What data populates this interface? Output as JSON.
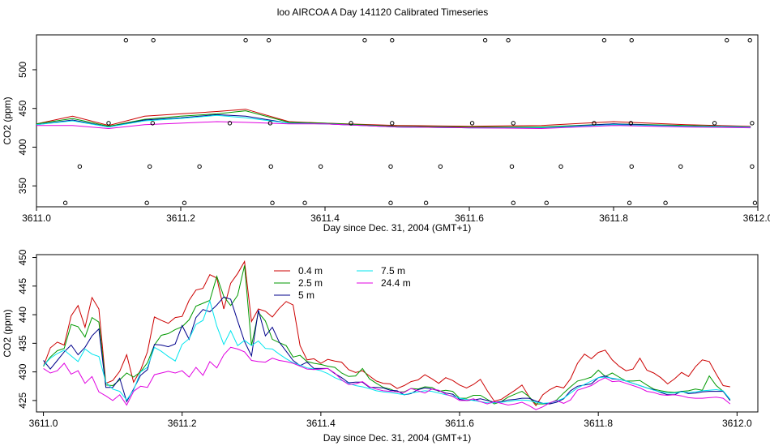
{
  "title": "loo AIRCOA A  Day 141120  Calibrated Timeseries",
  "colors": {
    "0.4 m": "#cc0000",
    "2.5 m": "#009900",
    "5 m": "#00008b",
    "7.5 m": "#00e5ee",
    "24.4 m": "#e000e0",
    "axis": "#000000",
    "background": "#ffffff"
  },
  "chart_data": [
    {
      "type": "line",
      "title": "loo AIRCOA A  Day 141120  Calibrated Timeseries",
      "xlabel": "Day since Dec. 31, 2004 (GMT+1)",
      "ylabel": "CO2 (ppm)",
      "xlim": [
        3611.0,
        3612.0
      ],
      "ylim": [
        323,
        545
      ],
      "xticks": [
        "3611.0",
        "3611.2",
        "3611.4",
        "3611.6",
        "3611.8",
        "3612.0"
      ],
      "yticks": [
        "350",
        "400",
        "450",
        "500"
      ],
      "grid": false,
      "legend": "none",
      "series": [
        {
          "key": "0.4 m",
          "x": [
            3611.0,
            3611.05,
            3611.1,
            3611.15,
            3611.2,
            3611.25,
            3611.29,
            3611.35,
            3611.4,
            3611.5,
            3611.6,
            3611.7,
            3611.8,
            3611.9,
            3611.99
          ],
          "values": [
            430,
            440,
            428,
            440,
            443,
            446,
            449,
            433,
            431,
            428,
            427,
            428,
            433,
            429,
            427
          ]
        },
        {
          "key": "2.5 m",
          "x": [
            3611.0,
            3611.05,
            3611.1,
            3611.15,
            3611.2,
            3611.25,
            3611.29,
            3611.35,
            3611.4,
            3611.5,
            3611.6,
            3611.7,
            3611.8,
            3611.9,
            3611.99
          ],
          "values": [
            430,
            437,
            427,
            436,
            440,
            443,
            447,
            432,
            431,
            427,
            426,
            426,
            430,
            428,
            426
          ]
        },
        {
          "key": "5 m",
          "x": [
            3611.0,
            3611.05,
            3611.1,
            3611.15,
            3611.2,
            3611.25,
            3611.29,
            3611.35,
            3611.4,
            3611.5,
            3611.6,
            3611.7,
            3611.8,
            3611.9,
            3611.99
          ],
          "values": [
            429,
            435,
            426,
            435,
            438,
            442,
            440,
            431,
            430,
            426,
            425,
            425,
            430,
            427,
            426
          ]
        },
        {
          "key": "7.5 m",
          "x": [
            3611.0,
            3611.05,
            3611.1,
            3611.15,
            3611.2,
            3611.25,
            3611.29,
            3611.35,
            3611.4,
            3611.5,
            3611.6,
            3611.7,
            3611.8,
            3611.9,
            3611.99
          ],
          "values": [
            429,
            434,
            426,
            434,
            437,
            441,
            438,
            431,
            430,
            426,
            425,
            425,
            429,
            427,
            426
          ]
        },
        {
          "key": "24.4 m",
          "x": [
            3611.0,
            3611.05,
            3611.1,
            3611.15,
            3611.2,
            3611.25,
            3611.29,
            3611.35,
            3611.4,
            3611.5,
            3611.6,
            3611.7,
            3611.8,
            3611.9,
            3611.99
          ],
          "values": [
            428,
            428,
            424,
            429,
            431,
            433,
            432,
            430,
            430,
            426,
            425,
            424,
            428,
            426,
            425
          ]
        }
      ],
      "points": [
        {
          "x": 3611.124,
          "y": 538
        },
        {
          "x": 3611.162,
          "y": 538
        },
        {
          "x": 3611.29,
          "y": 538
        },
        {
          "x": 3611.322,
          "y": 538
        },
        {
          "x": 3611.455,
          "y": 538
        },
        {
          "x": 3611.493,
          "y": 538
        },
        {
          "x": 3611.622,
          "y": 538
        },
        {
          "x": 3611.654,
          "y": 538
        },
        {
          "x": 3611.787,
          "y": 538
        },
        {
          "x": 3611.825,
          "y": 538
        },
        {
          "x": 3611.957,
          "y": 538
        },
        {
          "x": 3611.989,
          "y": 538
        },
        {
          "x": 3611.1,
          "y": 431
        },
        {
          "x": 3611.161,
          "y": 431
        },
        {
          "x": 3611.268,
          "y": 431
        },
        {
          "x": 3611.324,
          "y": 431
        },
        {
          "x": 3611.436,
          "y": 431
        },
        {
          "x": 3611.493,
          "y": 431
        },
        {
          "x": 3611.604,
          "y": 431
        },
        {
          "x": 3611.661,
          "y": 431
        },
        {
          "x": 3611.773,
          "y": 431
        },
        {
          "x": 3611.824,
          "y": 431
        },
        {
          "x": 3611.94,
          "y": 431
        },
        {
          "x": 3611.992,
          "y": 431
        },
        {
          "x": 3611.06,
          "y": 375
        },
        {
          "x": 3611.157,
          "y": 375
        },
        {
          "x": 3611.226,
          "y": 375
        },
        {
          "x": 3611.325,
          "y": 375
        },
        {
          "x": 3611.394,
          "y": 375
        },
        {
          "x": 3611.491,
          "y": 375
        },
        {
          "x": 3611.56,
          "y": 375
        },
        {
          "x": 3611.659,
          "y": 375
        },
        {
          "x": 3611.727,
          "y": 375
        },
        {
          "x": 3611.825,
          "y": 375
        },
        {
          "x": 3611.893,
          "y": 375
        },
        {
          "x": 3611.992,
          "y": 375
        },
        {
          "x": 3611.04,
          "y": 328
        },
        {
          "x": 3611.153,
          "y": 328
        },
        {
          "x": 3611.205,
          "y": 328
        },
        {
          "x": 3611.327,
          "y": 328
        },
        {
          "x": 3611.372,
          "y": 328
        },
        {
          "x": 3611.491,
          "y": 328
        },
        {
          "x": 3611.54,
          "y": 328
        },
        {
          "x": 3611.661,
          "y": 328
        },
        {
          "x": 3611.707,
          "y": 328
        },
        {
          "x": 3611.822,
          "y": 328
        },
        {
          "x": 3611.872,
          "y": 328
        },
        {
          "x": 3611.996,
          "y": 328
        }
      ]
    },
    {
      "type": "line",
      "title": "",
      "xlabel": "Day since Dec. 31, 2004 (GMT+1)",
      "ylabel": "CO2 (ppm)",
      "xlim": [
        3610.99,
        3612.03
      ],
      "ylim": [
        423,
        450.5
      ],
      "xticks": [
        "3611.0",
        "3611.2",
        "3611.4",
        "3611.6",
        "3611.8",
        "3612.0"
      ],
      "yticks": [
        "425",
        "430",
        "435",
        "440",
        "445",
        "450"
      ],
      "grid": false,
      "legend": "top-left",
      "x": [
        3611.0,
        3611.01,
        3611.02,
        3611.03,
        3611.04,
        3611.05,
        3611.06,
        3611.07,
        3611.08,
        3611.09,
        3611.1,
        3611.11,
        3611.12,
        3611.13,
        3611.14,
        3611.15,
        3611.16,
        3611.17,
        3611.18,
        3611.19,
        3611.2,
        3611.21,
        3611.22,
        3611.23,
        3611.24,
        3611.25,
        3611.26,
        3611.27,
        3611.28,
        3611.29,
        3611.3,
        3611.31,
        3611.32,
        3611.33,
        3611.34,
        3611.35,
        3611.36,
        3611.37,
        3611.38,
        3611.39,
        3611.4,
        3611.41,
        3611.42,
        3611.43,
        3611.44,
        3611.45,
        3611.46,
        3611.47,
        3611.48,
        3611.49,
        3611.5,
        3611.51,
        3611.52,
        3611.53,
        3611.54,
        3611.55,
        3611.56,
        3611.57,
        3611.58,
        3611.59,
        3611.6,
        3611.61,
        3611.62,
        3611.63,
        3611.64,
        3611.65,
        3611.66,
        3611.67,
        3611.68,
        3611.69,
        3611.7,
        3611.71,
        3611.72,
        3611.73,
        3611.74,
        3611.75,
        3611.76,
        3611.77,
        3611.78,
        3611.79,
        3611.8,
        3611.81,
        3611.82,
        3611.83,
        3611.84,
        3611.85,
        3611.86,
        3611.87,
        3611.88,
        3611.89,
        3611.9,
        3611.91,
        3611.92,
        3611.93,
        3611.94,
        3611.95,
        3611.96,
        3611.97,
        3611.98,
        3611.99
      ],
      "series": [
        {
          "name": "0.4 m",
          "key": "0.4 m",
          "values": [
            431.0,
            434.2,
            435.2,
            434.7,
            439.8,
            441.6,
            437.8,
            443.0,
            441.0,
            428.0,
            428.5,
            430.1,
            433.0,
            428.2,
            430.3,
            433.5,
            439.6,
            439.0,
            438.5,
            439.5,
            439.7,
            442.5,
            444.3,
            444.6,
            447.0,
            446.4,
            441.0,
            445.5,
            447.2,
            449.3,
            438.8,
            441.0,
            440.6,
            439.6,
            441.1,
            442.3,
            441.7,
            434.6,
            432.1,
            432.3,
            431.5,
            432.2,
            431.9,
            431.7,
            430.4,
            429.9,
            430.2,
            429.3,
            428.4,
            428.0,
            427.9,
            427.1,
            427.6,
            428.3,
            428.6,
            429.5,
            428.8,
            428.0,
            429.0,
            428.5,
            427.7,
            427.2,
            427.8,
            428.7,
            426.7,
            424.9,
            425.2,
            426.0,
            426.8,
            427.7,
            425.7,
            424.1,
            426.0,
            426.9,
            427.5,
            427.2,
            428.8,
            431.5,
            433.1,
            432.3,
            433.4,
            433.8,
            432.1,
            431.0,
            430.2,
            430.5,
            432.4,
            430.3,
            429.8,
            429.0,
            427.9,
            428.8,
            429.9,
            429.2,
            430.9,
            432.1,
            431.8,
            429.6,
            427.6,
            427.4
          ]
        },
        {
          "name": "2.5 m",
          "key": "2.5 m",
          "values": [
            431.0,
            432.6,
            433.7,
            434.1,
            438.3,
            437.9,
            436.1,
            439.5,
            438.7,
            427.7,
            427.6,
            428.6,
            429.8,
            429.1,
            430.0,
            431.6,
            434.7,
            436.4,
            436.7,
            437.4,
            437.9,
            439.1,
            441.5,
            442.0,
            442.5,
            446.7,
            443.2,
            441.6,
            443.4,
            448.6,
            434.6,
            440.4,
            438.9,
            435.7,
            435.1,
            434.6,
            432.6,
            432.9,
            431.8,
            431.5,
            431.3,
            431.0,
            430.8,
            429.8,
            429.2,
            429.3,
            430.6,
            428.8,
            428.0,
            427.3,
            427.0,
            426.5,
            426.5,
            427.1,
            427.0,
            427.4,
            427.3,
            426.6,
            426.8,
            426.6,
            425.4,
            425.4,
            425.9,
            425.9,
            425.2,
            424.4,
            424.8,
            425.6,
            426.1,
            426.6,
            425.7,
            424.4,
            424.4,
            424.5,
            425.1,
            426.3,
            427.4,
            428.4,
            428.7,
            429.1,
            430.3,
            429.2,
            429.8,
            429.1,
            428.4,
            428.4,
            428.5,
            427.7,
            427.0,
            426.7,
            426.5,
            426.4,
            426.6,
            426.7,
            427.0,
            426.8,
            429.3,
            427.6,
            426.6,
            425.1
          ]
        },
        {
          "name": "5 m",
          "key": "5 m",
          "values": [
            432.0,
            430.5,
            432.0,
            433.5,
            434.7,
            433.0,
            434.3,
            436.3,
            437.5,
            427.3,
            427.3,
            428.9,
            424.8,
            427.0,
            429.4,
            430.4,
            434.8,
            434.7,
            434.4,
            434.9,
            438.1,
            435.7,
            439.5,
            440.9,
            440.5,
            441.7,
            443.1,
            442.7,
            438.9,
            435.3,
            432.8,
            440.8,
            436.3,
            437.8,
            435.2,
            433.6,
            432.0,
            431.1,
            431.7,
            430.6,
            430.6,
            430.6,
            429.7,
            429.0,
            428.1,
            428.2,
            428.2,
            427.3,
            427.3,
            427.2,
            426.8,
            426.7,
            426.0,
            426.2,
            426.9,
            427.2,
            427.0,
            426.7,
            426.3,
            426.1,
            425.2,
            425.0,
            425.1,
            425.3,
            425.0,
            424.7,
            424.8,
            425.1,
            425.2,
            425.4,
            425.4,
            424.9,
            424.5,
            424.4,
            424.7,
            425.3,
            426.7,
            427.5,
            427.7,
            427.9,
            429.0,
            429.3,
            428.8,
            428.7,
            428.4,
            428.0,
            427.6,
            427.2,
            426.9,
            426.4,
            426.0,
            426.0,
            426.6,
            426.2,
            426.3,
            426.5,
            426.6,
            426.6,
            426.6,
            425.0
          ]
        },
        {
          "name": "7.5 m",
          "key": "7.5 m",
          "values": [
            431.1,
            432.4,
            433.2,
            433.8,
            432.8,
            431.8,
            434.0,
            433.1,
            432.7,
            428.2,
            427.0,
            426.6,
            425.1,
            426.8,
            430.0,
            430.8,
            434.3,
            433.6,
            432.7,
            431.9,
            434.8,
            435.8,
            438.3,
            439.0,
            442.4,
            438.0,
            434.8,
            437.2,
            434.6,
            435.5,
            434.6,
            435.4,
            434.1,
            434.0,
            433.1,
            432.3,
            431.6,
            431.2,
            430.7,
            430.5,
            430.2,
            429.7,
            429.0,
            428.5,
            428.0,
            427.6,
            427.4,
            427.1,
            426.7,
            426.5,
            426.4,
            426.2,
            426.0,
            426.3,
            426.5,
            426.7,
            426.6,
            426.3,
            426.0,
            425.8,
            425.4,
            425.2,
            425.0,
            424.8,
            424.6,
            424.6,
            424.7,
            424.8,
            425.0,
            425.1,
            425.0,
            424.7,
            424.5,
            424.6,
            424.9,
            425.4,
            426.3,
            427.2,
            427.8,
            428.4,
            429.0,
            429.1,
            428.9,
            428.7,
            428.4,
            428.0,
            427.6,
            427.2,
            426.8,
            426.5,
            426.3,
            426.3,
            426.5,
            426.4,
            426.5,
            426.7,
            426.8,
            426.9,
            426.7,
            425.2
          ]
        },
        {
          "name": "24.4 m",
          "key": "24.4 m",
          "values": [
            430.6,
            429.8,
            430.2,
            431.5,
            429.6,
            430.2,
            428.0,
            429.2,
            426.5,
            425.8,
            425.0,
            426.0,
            424.2,
            426.6,
            427.5,
            427.3,
            429.5,
            429.8,
            430.1,
            429.8,
            430.2,
            429.1,
            430.8,
            429.4,
            431.8,
            430.7,
            433.0,
            434.3,
            434.0,
            433.5,
            432.0,
            431.8,
            431.7,
            432.4,
            432.0,
            431.8,
            431.5,
            431.0,
            430.5,
            430.4,
            430.5,
            430.6,
            429.8,
            428.6,
            427.8,
            427.9,
            428.3,
            427.4,
            427.0,
            426.7,
            426.6,
            426.5,
            426.4,
            427.1,
            426.7,
            426.3,
            427.0,
            426.8,
            426.1,
            425.7,
            425.0,
            425.0,
            425.3,
            424.8,
            424.4,
            424.8,
            424.5,
            424.2,
            424.4,
            424.7,
            424.1,
            423.4,
            423.9,
            424.6,
            425.0,
            424.5,
            425.1,
            426.8,
            427.2,
            427.6,
            428.4,
            429.0,
            428.3,
            428.4,
            428.0,
            427.6,
            427.2,
            426.6,
            426.4,
            426.0,
            425.9,
            426.0,
            425.8,
            425.5,
            425.4,
            425.4,
            425.5,
            425.6,
            425.4,
            424.4
          ]
        }
      ]
    }
  ]
}
